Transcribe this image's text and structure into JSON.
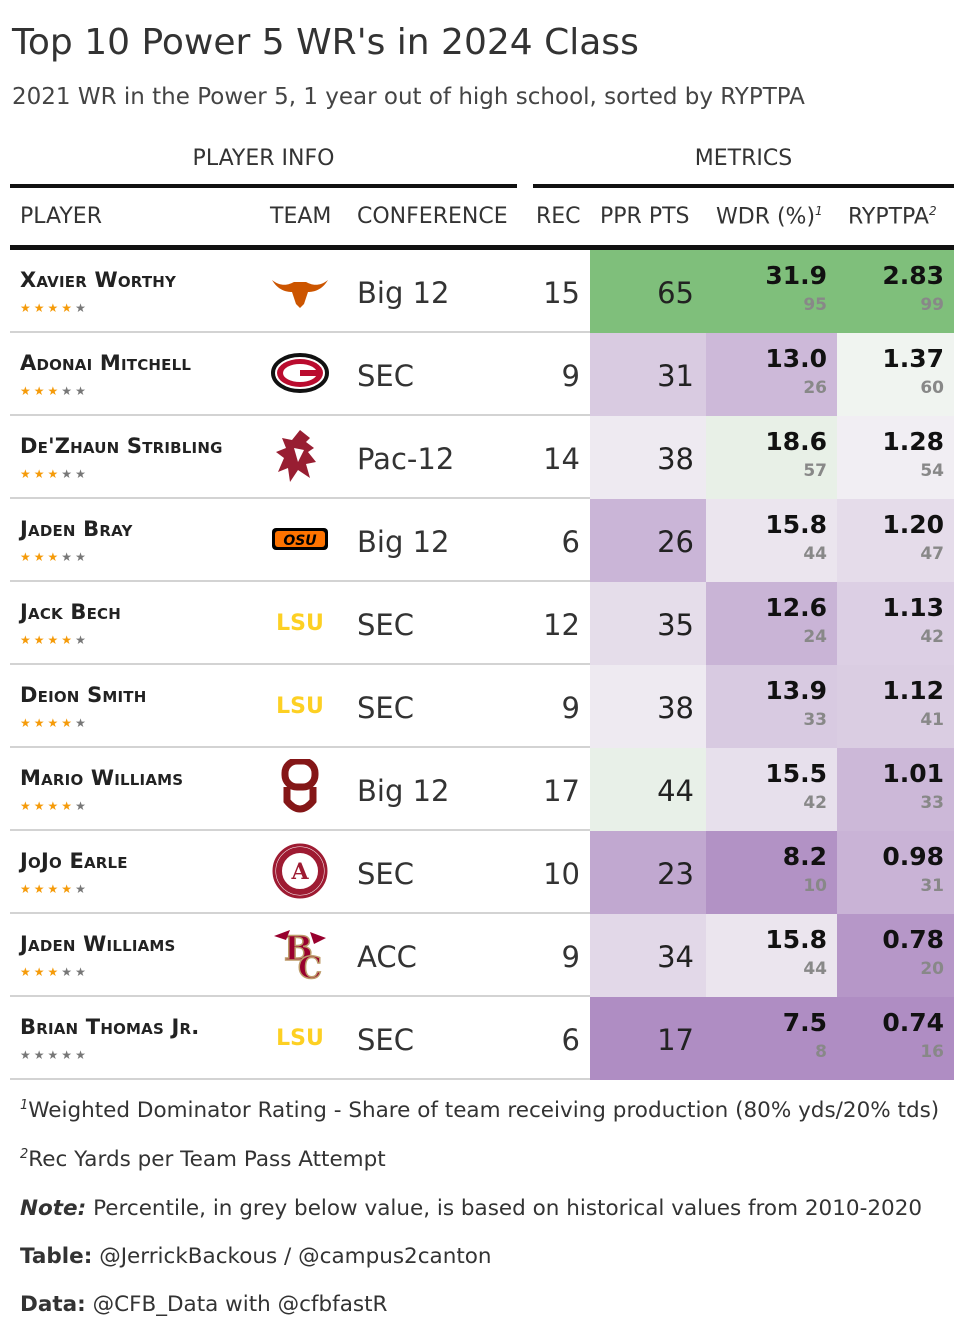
{
  "header": {
    "title": "Top 10 Power 5 WR's in 2024 Class",
    "subtitle": "2021 WR in the Power 5, 1 year out of high school, sorted by RYPTPA",
    "spanner_player_info": "PLAYER INFO",
    "spanner_metrics": "METRICS"
  },
  "columns": {
    "player": "PLAYER",
    "team": "TEAM",
    "conference": "CONFERENCE",
    "rec": "REC",
    "ppr": "PPR PTS",
    "wdr": "WDR (%)",
    "wdr_sup": "1",
    "ryptpa": "RYPTPA",
    "ryptpa_sup": "2"
  },
  "colors": {
    "green": "#7fbf7b",
    "mid": "#f7f7f7",
    "purple": "#af8dc3",
    "star_on": "#f59b0a",
    "star_off": "#777777"
  },
  "chart_data": {
    "type": "table",
    "columns": [
      "PLAYER",
      "TEAM",
      "CONFERENCE",
      "REC",
      "PPR PTS",
      "WDR (%)",
      "RYPTPA"
    ],
    "rows": [
      {
        "name": "Xavier Worthy",
        "stars": 4,
        "team_logo": "texas-longhorn-logo",
        "conference": "Big 12",
        "rec": "15",
        "ppr": "65",
        "ppr_num": 65,
        "wdr": "31.9",
        "wdr_pct": "95",
        "wdr_pct_num": 95,
        "ryptpa": "2.83",
        "ryptpa_pct": "99",
        "ryptpa_pct_num": 99
      },
      {
        "name": "Adonai Mitchell",
        "stars": 3,
        "team_logo": "georgia-g-logo",
        "conference": "SEC",
        "rec": "9",
        "ppr": "31",
        "ppr_num": 31,
        "wdr": "13.0",
        "wdr_pct": "26",
        "wdr_pct_num": 26,
        "ryptpa": "1.37",
        "ryptpa_pct": "60",
        "ryptpa_pct_num": 60
      },
      {
        "name": "De'Zhaun Stribling",
        "stars": 3,
        "team_logo": "washington-state-cougar-logo",
        "conference": "Pac-12",
        "rec": "14",
        "ppr": "38",
        "ppr_num": 38,
        "wdr": "18.6",
        "wdr_pct": "57",
        "wdr_pct_num": 57,
        "ryptpa": "1.28",
        "ryptpa_pct": "54",
        "ryptpa_pct_num": 54
      },
      {
        "name": "Jaden Bray",
        "stars": 3,
        "team_logo": "oklahoma-state-logo",
        "conference": "Big 12",
        "rec": "6",
        "ppr": "26",
        "ppr_num": 26,
        "wdr": "15.8",
        "wdr_pct": "44",
        "wdr_pct_num": 44,
        "ryptpa": "1.20",
        "ryptpa_pct": "47",
        "ryptpa_pct_num": 47
      },
      {
        "name": "Jack Bech",
        "stars": 4,
        "team_logo": "lsu-logo",
        "conference": "SEC",
        "rec": "12",
        "ppr": "35",
        "ppr_num": 35,
        "wdr": "12.6",
        "wdr_pct": "24",
        "wdr_pct_num": 24,
        "ryptpa": "1.13",
        "ryptpa_pct": "42",
        "ryptpa_pct_num": 42
      },
      {
        "name": "Deion Smith",
        "stars": 4,
        "team_logo": "lsu-logo",
        "conference": "SEC",
        "rec": "9",
        "ppr": "38",
        "ppr_num": 38,
        "wdr": "13.9",
        "wdr_pct": "33",
        "wdr_pct_num": 33,
        "ryptpa": "1.12",
        "ryptpa_pct": "41",
        "ryptpa_pct_num": 41
      },
      {
        "name": "Mario Williams",
        "stars": 4,
        "team_logo": "oklahoma-ou-logo",
        "conference": "Big 12",
        "rec": "17",
        "ppr": "44",
        "ppr_num": 44,
        "wdr": "15.5",
        "wdr_pct": "42",
        "wdr_pct_num": 42,
        "ryptpa": "1.01",
        "ryptpa_pct": "33",
        "ryptpa_pct_num": 33
      },
      {
        "name": "JoJo Earle",
        "stars": 4,
        "team_logo": "alabama-logo",
        "conference": "SEC",
        "rec": "10",
        "ppr": "23",
        "ppr_num": 23,
        "wdr": "8.2",
        "wdr_pct": "10",
        "wdr_pct_num": 10,
        "ryptpa": "0.98",
        "ryptpa_pct": "31",
        "ryptpa_pct_num": 31
      },
      {
        "name": "Jaden Williams",
        "stars": 3,
        "team_logo": "boston-college-logo",
        "conference": "ACC",
        "rec": "9",
        "ppr": "34",
        "ppr_num": 34,
        "wdr": "15.8",
        "wdr_pct": "44",
        "wdr_pct_num": 44,
        "ryptpa": "0.78",
        "ryptpa_pct": "20",
        "ryptpa_pct_num": 20
      },
      {
        "name": "Brian Thomas Jr.",
        "stars": 0,
        "team_logo": "lsu-logo",
        "conference": "SEC",
        "rec": "6",
        "ppr": "17",
        "ppr_num": 17,
        "wdr": "7.5",
        "wdr_pct": "8",
        "wdr_pct_num": 8,
        "ryptpa": "0.74",
        "ryptpa_pct": "16",
        "ryptpa_pct_num": 16
      }
    ]
  },
  "footnotes": {
    "note1_sup": "1",
    "note1": "Weighted Dominator Rating - Share of team receiving production (80% yds/20% tds)",
    "note2_sup": "2",
    "note2": "Rec Yards per Team Pass Attempt",
    "note_label": "Note:",
    "note_text": "Percentile, in grey below value, is based on historical values from 2010-2020",
    "table_label": "Table:",
    "table_text": "@JerrickBackous / @campus2canton",
    "data_label": "Data:",
    "data_text": "@CFB_Data with @cfbfastR"
  }
}
